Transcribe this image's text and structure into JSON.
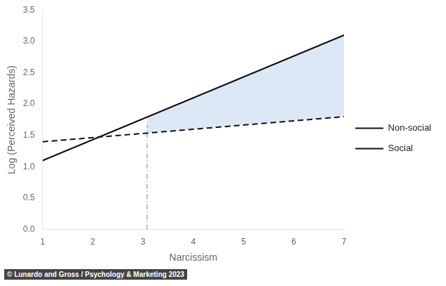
{
  "chart_data": {
    "type": "line",
    "xlabel": "Narcissism",
    "ylabel": "Log (Perceived Hazards)",
    "caption": "© Lunardo and Gross / Psychology & Marketing 2023",
    "series": [
      {
        "name": "Non-social",
        "x": [
          1,
          7
        ],
        "values": [
          1.4,
          1.8
        ],
        "color": "#111111",
        "line_style": "dashed"
      },
      {
        "name": "Social",
        "x": [
          1,
          7
        ],
        "values": [
          1.1,
          3.1
        ],
        "color": "#111111",
        "line_style": "solid"
      }
    ],
    "shade": {
      "x": [
        3.08,
        7
      ],
      "lower": [
        1.5386666666666666,
        1.8
      ],
      "upper": [
        1.7933333333333334,
        3.1
      ],
      "color": "#dce8f5"
    },
    "vline": {
      "x": 3.08,
      "y": [
        0,
        1.666
      ],
      "color": "gray",
      "line_style": "dashdot"
    },
    "xlim": [
      1,
      7
    ],
    "ylim": [
      0,
      3.5
    ],
    "xticks": [
      1,
      2,
      3,
      4,
      5,
      6,
      7
    ],
    "yticks": [
      {
        "value": 0,
        "label": "0.0"
      },
      0.5,
      {
        "value": 1,
        "label": "1.0"
      },
      1.5,
      {
        "value": 2,
        "label": "2.0"
      },
      2.5,
      {
        "value": 3,
        "label": "3.0"
      },
      3.5
    ],
    "grid": false,
    "legend": "right"
  }
}
